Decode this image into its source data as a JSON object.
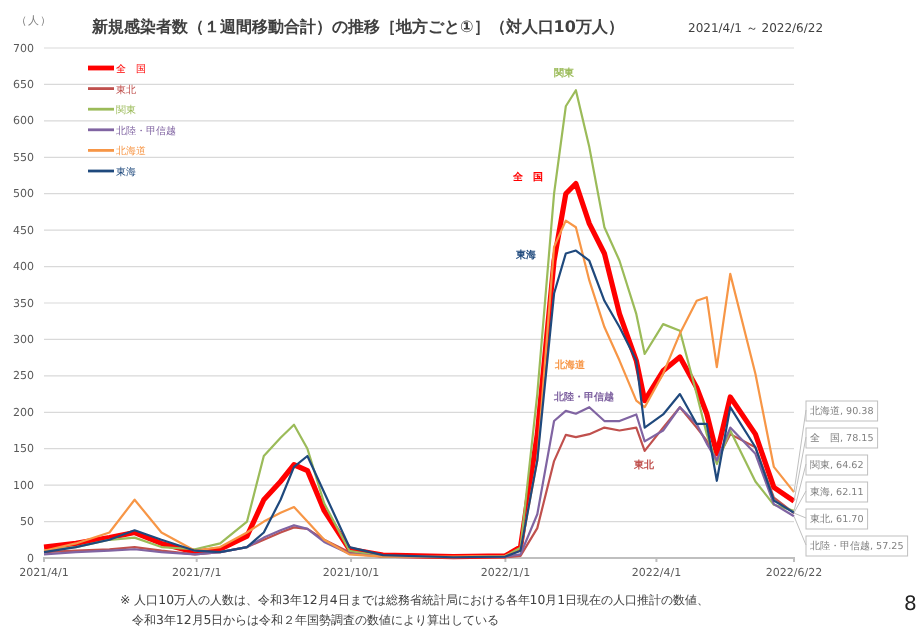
{
  "chart_data": {
    "type": "line",
    "title": "新規感染者数（１週間移動合計）の推移［地方ごと①］（対人口10万人）",
    "subtitle": "2021/4/1 ～ 2022/6/22",
    "ylabel": "（人）",
    "x": [
      "2021-04-01",
      "2021-04-20",
      "2021-05-10",
      "2021-05-25",
      "2021-06-10",
      "2021-06-30",
      "2021-07-15",
      "2021-07-31",
      "2021-08-10",
      "2021-08-20",
      "2021-08-28",
      "2021-09-05",
      "2021-09-15",
      "2021-09-30",
      "2021-10-20",
      "2021-12-01",
      "2022-01-01",
      "2022-01-10",
      "2022-01-20",
      "2022-01-30",
      "2022-02-06",
      "2022-02-12",
      "2022-02-20",
      "2022-03-01",
      "2022-03-10",
      "2022-03-20",
      "2022-03-25",
      "2022-04-05",
      "2022-04-15",
      "2022-04-25",
      "2022-05-01",
      "2022-05-07",
      "2022-05-15",
      "2022-05-30",
      "2022-06-10",
      "2022-06-22"
    ],
    "series": [
      {
        "name": "全　国",
        "color": "#ff0000",
        "values": [
          15,
          20,
          28,
          35,
          20,
          8,
          12,
          30,
          80,
          105,
          128,
          120,
          65,
          12,
          4,
          2,
          3,
          15,
          170,
          408,
          500,
          514,
          459,
          418,
          335,
          271,
          216,
          257,
          276,
          234,
          198,
          143,
          221,
          170,
          97,
          78.15
        ]
      },
      {
        "name": "東北",
        "color": "#c0504d",
        "values": [
          8,
          10,
          12,
          15,
          10,
          5,
          8,
          15,
          25,
          35,
          42,
          40,
          25,
          8,
          2,
          1,
          1,
          3,
          41,
          133,
          169,
          166,
          170,
          179,
          175,
          179,
          147,
          179,
          207,
          179,
          161,
          134,
          170,
          152,
          83,
          61.7
        ]
      },
      {
        "name": "関東",
        "color": "#9bbb59",
        "values": [
          10,
          15,
          25,
          28,
          15,
          12,
          20,
          50,
          140,
          165,
          183,
          150,
          75,
          10,
          2,
          1,
          3,
          14,
          225,
          500,
          620,
          642,
          564,
          454,
          408,
          335,
          280,
          321,
          312,
          225,
          170,
          129,
          175,
          105,
          73,
          64.62
        ]
      },
      {
        "name": "北陸・甲信越",
        "color": "#8064a2",
        "values": [
          5,
          8,
          10,
          12,
          8,
          5,
          8,
          15,
          28,
          38,
          45,
          40,
          22,
          6,
          2,
          1,
          2,
          5,
          60,
          188,
          202,
          198,
          207,
          188,
          188,
          197,
          160,
          175,
          207,
          184,
          157,
          134,
          179,
          143,
          74,
          57.25
        ]
      },
      {
        "name": "北海道",
        "color": "#f79646",
        "values": [
          10,
          20,
          35,
          80,
          35,
          10,
          15,
          35,
          50,
          62,
          70,
          50,
          25,
          5,
          2,
          2,
          3,
          10,
          134,
          427,
          463,
          454,
          381,
          317,
          271,
          216,
          207,
          253,
          308,
          353,
          358,
          262,
          390,
          253,
          125,
          90.38
        ]
      },
      {
        "name": "東海",
        "color": "#1f497d",
        "values": [
          8,
          15,
          25,
          38,
          25,
          10,
          8,
          15,
          35,
          80,
          125,
          140,
          90,
          15,
          4,
          1,
          2,
          10,
          134,
          363,
          418,
          422,
          408,
          353,
          317,
          271,
          179,
          197,
          225,
          184,
          184,
          106,
          207,
          152,
          79,
          62.11
        ]
      }
    ],
    "xlim": [
      "2021-04-01",
      "2022-06-22"
    ],
    "ylim": [
      0,
      700
    ],
    "yticks": [
      0,
      50,
      100,
      150,
      200,
      250,
      300,
      350,
      400,
      450,
      500,
      550,
      600,
      650,
      700
    ],
    "xticks": [
      {
        "value": "2021-04-01",
        "label": "2021/4/1"
      },
      {
        "value": "2021-07-01",
        "label": "2021/7/1"
      },
      {
        "value": "2021-10-01",
        "label": "2021/10/1"
      },
      {
        "value": "2022-01-01",
        "label": "2022/1/1"
      },
      {
        "value": "2022-04-01",
        "label": "2022/4/1"
      },
      {
        "value": "2022-06-22",
        "label": "2022/6/22"
      }
    ],
    "grid": "y",
    "legend": "top left",
    "marker": "none",
    "line_style": "solid",
    "annotations": [
      "関東",
      "全　国",
      "東海",
      "北海道",
      "北陸・甲信越",
      "東北",
      {
        "text": "北海道, 90.38",
        "x": "2022-06-22",
        "y": 90.38
      },
      {
        "text": "全　国, 78.15",
        "x": "2022-06-22",
        "y": 78.15
      },
      {
        "text": "関東, 64.62",
        "x": "2022-06-22",
        "y": 64.62
      },
      {
        "text": "東海, 62.11",
        "x": "2022-06-22",
        "y": 62.11
      },
      {
        "text": "東北, 61.70",
        "x": "2022-06-22",
        "y": 61.7
      },
      {
        "text": "北陸・甲信越, 57.25",
        "x": "2022-06-22",
        "y": 57.25
      },
      "※ 人口10万人の人数は、令和3年12月4日までは総務省統計局における各年10月1日現在の人口推計の数値、",
      "令和3年12月5日からは令和２年国勢調査の数値により算出している",
      "8"
    ]
  }
}
